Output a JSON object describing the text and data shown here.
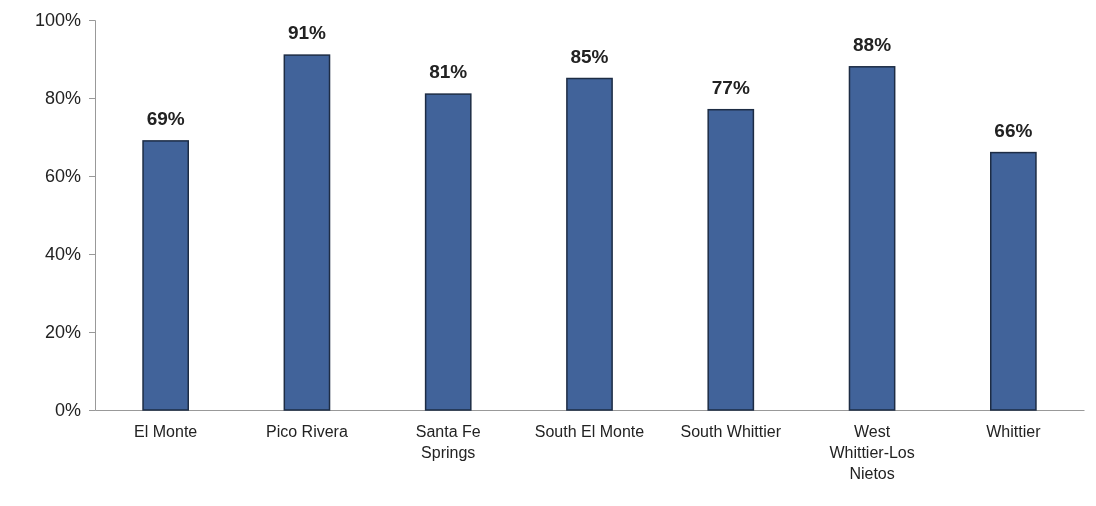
{
  "chart_data": {
    "type": "bar",
    "categories": [
      "El Monte",
      "Pico Rivera",
      "Santa Fe Springs",
      "South El Monte",
      "South Whittier",
      "West Whittier-Los Nietos",
      "Whittier"
    ],
    "values": [
      69,
      91,
      81,
      85,
      77,
      88,
      66
    ],
    "value_labels": [
      "69%",
      "91%",
      "81%",
      "85%",
      "77%",
      "88%",
      "66%"
    ],
    "color": "#41639a",
    "ylim": [
      0,
      100
    ],
    "yticks": [
      {
        "value": 0,
        "label": "0%"
      },
      {
        "value": 20,
        "label": "20%"
      },
      {
        "value": 40,
        "label": "40%"
      },
      {
        "value": 60,
        "label": "60%"
      },
      {
        "value": 80,
        "label": "80%"
      },
      {
        "value": 100,
        "label": "100%"
      }
    ]
  }
}
